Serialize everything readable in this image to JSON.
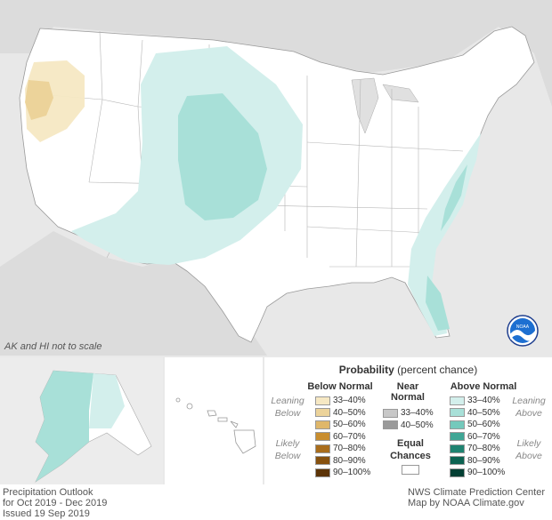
{
  "main_map": {
    "scale_note": "AK and HI not to scale",
    "logo_text": "NOAA"
  },
  "legend": {
    "title_bold": "Probability",
    "title_rest": "(percent chance)",
    "below_header": "Below Normal",
    "near_header": "Near Normal",
    "above_header": "Above Normal",
    "leaning_below": "Leaning Below",
    "likely_below": "Likely Below",
    "leaning_above": "Leaning Above",
    "likely_above": "Likely Above",
    "equal_chances": "Equal Chances",
    "below_items": [
      {
        "label": "33–40%",
        "color": "#f6e8c3"
      },
      {
        "label": "40–50%",
        "color": "#ecd39a"
      },
      {
        "label": "50–60%",
        "color": "#dfb76a"
      },
      {
        "label": "60–70%",
        "color": "#c98e2f"
      },
      {
        "label": "70–80%",
        "color": "#a96d1c"
      },
      {
        "label": "80–90%",
        "color": "#86510f"
      },
      {
        "label": "90–100%",
        "color": "#5c3407"
      }
    ],
    "near_items": [
      {
        "label": "33–40%",
        "color": "#c8c8c8"
      },
      {
        "label": "40–50%",
        "color": "#9a9a9a"
      }
    ],
    "above_items": [
      {
        "label": "33–40%",
        "color": "#d3efec"
      },
      {
        "label": "40–50%",
        "color": "#a8e0d8"
      },
      {
        "label": "50–60%",
        "color": "#74c9bc"
      },
      {
        "label": "60–70%",
        "color": "#3fa695"
      },
      {
        "label": "70–80%",
        "color": "#1f8371"
      },
      {
        "label": "80–90%",
        "color": "#0d6352"
      },
      {
        "label": "90–100%",
        "color": "#033f33"
      }
    ]
  },
  "footer": {
    "left_line1": "Precipitation Outlook",
    "left_line2": "for Oct 2019 - Dec 2019",
    "left_line3": "Issued 19 Sep 2019",
    "right_line1": "NWS Climate Prediction Center",
    "right_line2": "Map by NOAA Climate.gov"
  }
}
